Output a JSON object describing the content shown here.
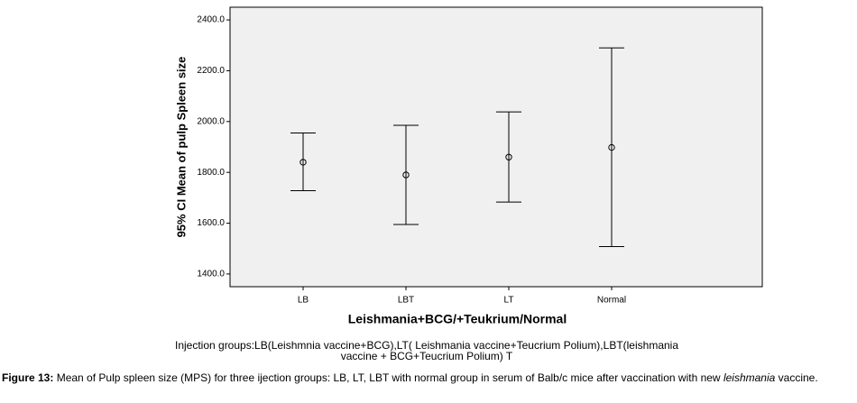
{
  "chart_data": {
    "type": "errorbar",
    "y_label": "95% CI Mean of pulp Spleen size",
    "x_label": "Leishmania+BCG/+Teukrium/Normal",
    "categories": [
      "LB",
      "LBT",
      "LT",
      "Normal"
    ],
    "values": [
      1840,
      1790,
      1860,
      1898
    ],
    "lower": [
      1728,
      1595,
      1683,
      1508
    ],
    "upper": [
      1955,
      1985,
      2038,
      2290
    ],
    "color": "#000000",
    "ylim": [
      1350,
      2450
    ],
    "yticks": [
      {
        "value": 1400,
        "label": "1400.0"
      },
      {
        "value": 1600,
        "label": "1600.0"
      },
      {
        "value": 1800,
        "label": "1800.0"
      },
      {
        "value": 2000,
        "label": "2000.0"
      },
      {
        "value": 2200,
        "label": "2200.0"
      },
      {
        "value": 2400,
        "label": "2400.0"
      }
    ],
    "note": [
      "Injection groups:LB(Leishmnia vaccine+BCG),LT( Leishmania vaccine+Teucrium Polium),LBT(leishmania",
      "vaccine + BCG+Teucrium Polium)    T"
    ]
  },
  "caption": {
    "label": "Figure 13:",
    "text": " Mean of  Pulp spleen size (MPS) for three ijection groups: LB, LT, LBT with normal group in serum of Balb/c mice after vaccination with new ",
    "italic": "leishmania",
    "end": " vaccine."
  }
}
